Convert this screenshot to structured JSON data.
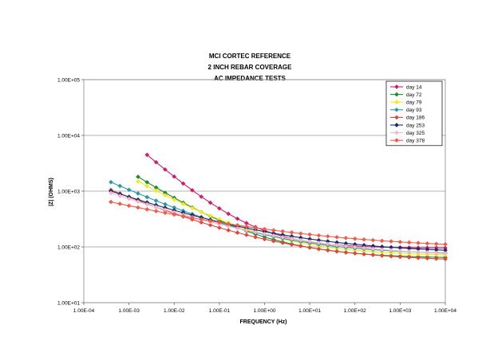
{
  "chart_data": {
    "type": "line",
    "title": [
      "MCI CORTEC REFERENCE",
      "2 INCH REBAR COVERAGE",
      "AC IMPEDANCE TESTS"
    ],
    "xlabel": "FREQUENCY (Hz)",
    "ylabel": "|Z| (OHMS)",
    "xscale": "log",
    "yscale": "log",
    "xlim": [
      0.0001,
      10000
    ],
    "ylim": [
      10,
      100000
    ],
    "x_tick_labels": [
      "1.00E-04",
      "1.00E-03",
      "1.00E-02",
      "1.00E-01",
      "1.00E+00",
      "1.00E+01",
      "1.00E+02",
      "1.00E+03",
      "1.00E+04"
    ],
    "y_tick_labels": [
      "1.00E+01",
      "1.00E+02",
      "1.00E+03",
      "1.00E+04",
      "1.00E+05"
    ],
    "grid": "horizontal",
    "legend_position": "top-right",
    "series": [
      {
        "name": "day 14",
        "color": "#cc1f6b",
        "x_start": 0.0025,
        "start_value": 4500,
        "end_value": 95,
        "knee": 0.5,
        "slope": 0.52
      },
      {
        "name": "day 72",
        "color": "#1e8a2e",
        "x_start": 0.0016,
        "start_value": 1800,
        "end_value": 62,
        "knee": 0.5,
        "slope": 0.36
      },
      {
        "name": "day 79",
        "color": "#f2ea1a",
        "x_start": 0.0011,
        "start_value": 1750,
        "end_value": 68,
        "knee": 0.6,
        "slope": 0.33
      },
      {
        "name": "day 93",
        "color": "#2a9aa8",
        "x_start": 0.0004,
        "start_value": 1450,
        "end_value": 72,
        "knee": 0.6,
        "slope": 0.29
      },
      {
        "name": "day 186",
        "color": "#e4453a",
        "x_start": 0.0003,
        "start_value": 1150,
        "end_value": 54,
        "knee": 0.8,
        "slope": 0.26
      },
      {
        "name": "day 253",
        "color": "#1c2a6e",
        "x_start": 0.0003,
        "start_value": 1080,
        "end_value": 75,
        "knee": 1.0,
        "slope": 0.23
      },
      {
        "name": "day 325",
        "color": "#f0b8c8",
        "x_start": 0.0003,
        "start_value": 1000,
        "end_value": 64,
        "knee": 1.0,
        "slope": 0.22
      },
      {
        "name": "day 378",
        "color": "#f25a4a",
        "x_start": 0.0004,
        "start_value": 640,
        "end_value": 90,
        "knee": 1.2,
        "slope": 0.18
      }
    ]
  }
}
